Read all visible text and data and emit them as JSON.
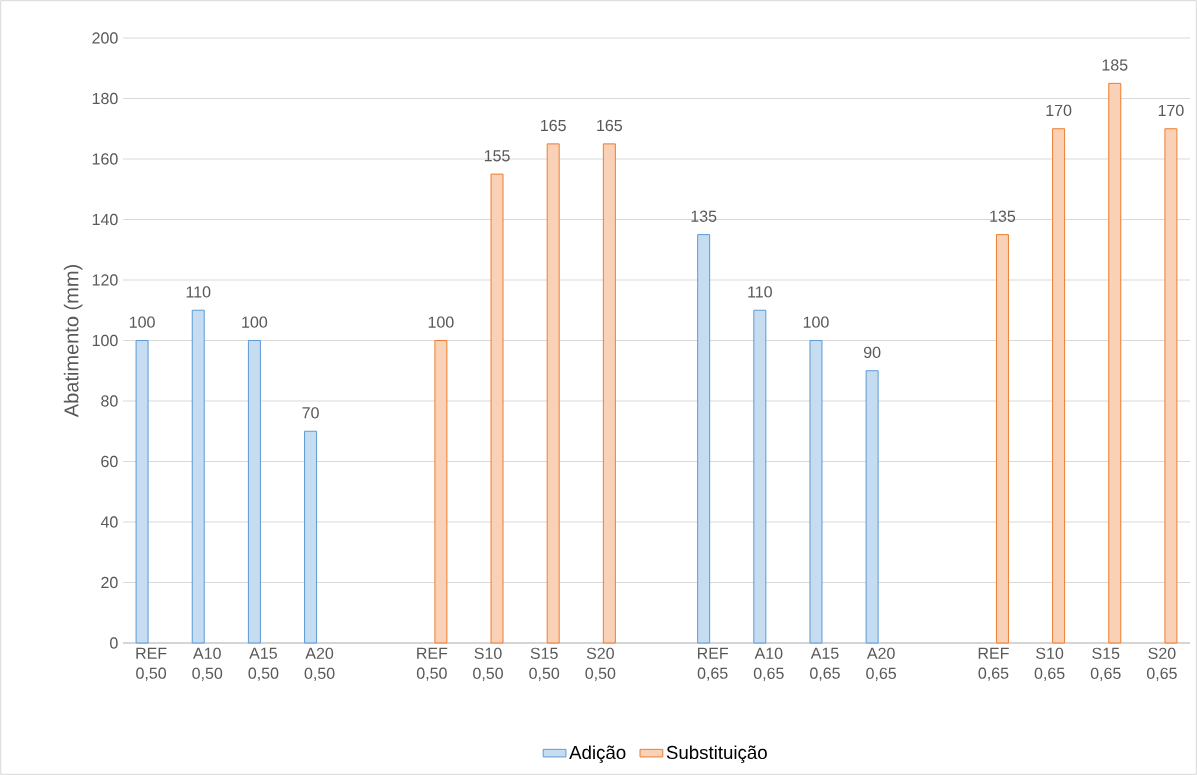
{
  "chart_data": {
    "type": "bar",
    "ylabel": "Abatimento (mm)",
    "categories": [
      "REF 0,50",
      "A10 0,50",
      "A15 0,50",
      "A20 0,50",
      null,
      "REF 0,50",
      "S10 0,50",
      "S15 0,50",
      "S20 0,50",
      null,
      "REF 0,65",
      "A10 0,65",
      "A15 0,65",
      "A20 0,65",
      null,
      "REF 0,65",
      "S10 0,65",
      "S15 0,65",
      "S20 0,65"
    ],
    "series": [
      {
        "name": "Adição",
        "color": "#5b9bd5",
        "values": [
          100,
          110,
          100,
          70,
          null,
          null,
          null,
          null,
          null,
          null,
          135,
          110,
          100,
          90,
          null,
          null,
          null,
          null,
          null
        ]
      },
      {
        "name": "Substituição",
        "color": "#ed7d31",
        "values": [
          null,
          null,
          null,
          null,
          null,
          100,
          155,
          165,
          165,
          null,
          null,
          null,
          null,
          null,
          null,
          135,
          170,
          185,
          170
        ]
      }
    ],
    "ylim": [
      0,
      200
    ],
    "yticks": [
      0,
      20,
      40,
      60,
      80,
      100,
      120,
      140,
      160,
      180,
      200
    ],
    "grid": "y",
    "legend": "bottom",
    "data_labels": true
  }
}
